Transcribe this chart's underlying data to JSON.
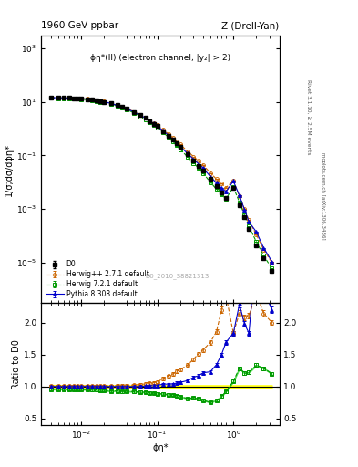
{
  "title_left": "1960 GeV ppbar",
  "title_right": "Z (Drell-Yan)",
  "annotation": "ϕη*(ll) (electron channel, |y₂| > 2)",
  "watermark": "D0_2010_S8821313",
  "ylabel_main": "1/σ;dσ/dϕη*",
  "ylabel_ratio": "Ratio to D0",
  "xlabel": "ϕη*",
  "right_label": "Rivet 3.1.10, ≥ 2.5M events",
  "right_label2": "mcplots.cern.ch [arXiv:1306.3436]",
  "d0_x": [
    0.004,
    0.005,
    0.006,
    0.007,
    0.008,
    0.009,
    0.01,
    0.012,
    0.014,
    0.016,
    0.018,
    0.02,
    0.025,
    0.03,
    0.035,
    0.04,
    0.05,
    0.06,
    0.07,
    0.08,
    0.09,
    0.1,
    0.12,
    0.14,
    0.16,
    0.18,
    0.2,
    0.25,
    0.3,
    0.35,
    0.4,
    0.5,
    0.6,
    0.7,
    0.8,
    1.0,
    1.2,
    1.4,
    1.6,
    2.0,
    2.5,
    3.2
  ],
  "d0_y": [
    14.5,
    14.2,
    14.0,
    13.9,
    13.7,
    13.5,
    13.2,
    12.7,
    12.1,
    11.4,
    10.7,
    10.1,
    8.7,
    7.4,
    6.4,
    5.5,
    4.15,
    3.15,
    2.48,
    1.93,
    1.53,
    1.23,
    0.8,
    0.55,
    0.385,
    0.275,
    0.202,
    0.108,
    0.063,
    0.041,
    0.028,
    0.013,
    0.007,
    0.004,
    0.0026,
    0.006,
    0.0014,
    0.00048,
    0.00018,
    4.5e-05,
    1.4e-05,
    5e-06
  ],
  "d0_yerr": [
    0.35,
    0.32,
    0.3,
    0.29,
    0.28,
    0.27,
    0.26,
    0.25,
    0.24,
    0.23,
    0.21,
    0.2,
    0.17,
    0.15,
    0.13,
    0.11,
    0.083,
    0.063,
    0.05,
    0.039,
    0.031,
    0.025,
    0.016,
    0.011,
    0.0077,
    0.0055,
    0.004,
    0.0022,
    0.0013,
    0.00082,
    0.00056,
    0.00026,
    0.00014,
    8e-05,
    5.2e-05,
    0.00012,
    2.8e-05,
    9.6e-06,
    3.6e-06,
    9e-07,
    2.8e-07,
    1e-07
  ],
  "herwig_pp_x": [
    0.004,
    0.005,
    0.006,
    0.007,
    0.008,
    0.009,
    0.01,
    0.012,
    0.014,
    0.016,
    0.018,
    0.02,
    0.025,
    0.03,
    0.035,
    0.04,
    0.05,
    0.06,
    0.07,
    0.08,
    0.09,
    0.1,
    0.12,
    0.14,
    0.16,
    0.18,
    0.2,
    0.25,
    0.3,
    0.35,
    0.4,
    0.5,
    0.6,
    0.7,
    0.8,
    1.0,
    1.2,
    1.4,
    1.6,
    2.0,
    2.5,
    3.2
  ],
  "herwig_pp_y": [
    14.6,
    14.3,
    14.1,
    14.0,
    13.8,
    13.6,
    13.3,
    12.8,
    12.2,
    11.5,
    10.8,
    10.2,
    8.8,
    7.5,
    6.5,
    5.6,
    4.25,
    3.25,
    2.58,
    2.03,
    1.62,
    1.32,
    0.9,
    0.64,
    0.46,
    0.34,
    0.255,
    0.144,
    0.09,
    0.062,
    0.044,
    0.022,
    0.013,
    0.0088,
    0.0063,
    0.011,
    0.003,
    0.001,
    0.00038,
    0.00011,
    3e-05,
    1e-05
  ],
  "herwig_pp_yerr": [
    0.05,
    0.05,
    0.05,
    0.05,
    0.05,
    0.05,
    0.05,
    0.05,
    0.05,
    0.045,
    0.04,
    0.04,
    0.035,
    0.03,
    0.026,
    0.022,
    0.017,
    0.013,
    0.01,
    0.008,
    0.0065,
    0.0053,
    0.0036,
    0.0026,
    0.0018,
    0.0014,
    0.001,
    0.00058,
    0.00036,
    0.00025,
    0.00018,
    9e-05,
    5.2e-05,
    3.5e-05,
    2.5e-05,
    4.4e-05,
    1.2e-05,
    4e-06,
    1.5e-06,
    4.4e-07,
    1.2e-07,
    4e-08
  ],
  "herwig_72_x": [
    0.004,
    0.005,
    0.006,
    0.007,
    0.008,
    0.009,
    0.01,
    0.012,
    0.014,
    0.016,
    0.018,
    0.02,
    0.025,
    0.03,
    0.035,
    0.04,
    0.05,
    0.06,
    0.07,
    0.08,
    0.09,
    0.1,
    0.12,
    0.14,
    0.16,
    0.18,
    0.2,
    0.25,
    0.3,
    0.35,
    0.4,
    0.5,
    0.6,
    0.7,
    0.8,
    1.0,
    1.2,
    1.4,
    1.6,
    2.0,
    2.5,
    3.2
  ],
  "herwig_72_y": [
    13.9,
    13.6,
    13.4,
    13.3,
    13.1,
    12.9,
    12.6,
    12.1,
    11.5,
    10.8,
    10.1,
    9.5,
    8.1,
    6.9,
    5.9,
    5.1,
    3.82,
    2.88,
    2.26,
    1.74,
    1.37,
    1.09,
    0.71,
    0.48,
    0.335,
    0.235,
    0.17,
    0.088,
    0.052,
    0.033,
    0.022,
    0.0098,
    0.0055,
    0.0034,
    0.0024,
    0.0065,
    0.0018,
    0.00058,
    0.00022,
    6e-05,
    1.8e-05,
    6e-06
  ],
  "herwig_72_yerr": [
    0.05,
    0.05,
    0.05,
    0.05,
    0.05,
    0.05,
    0.05,
    0.05,
    0.046,
    0.043,
    0.04,
    0.038,
    0.032,
    0.028,
    0.024,
    0.02,
    0.015,
    0.012,
    0.009,
    0.007,
    0.0055,
    0.0044,
    0.0028,
    0.0019,
    0.00134,
    0.00094,
    0.00068,
    0.00035,
    0.00021,
    0.000132,
    9e-05,
    4e-05,
    2.2e-05,
    1.36e-05,
    9.6e-06,
    2.6e-05,
    7.2e-06,
    2.32e-06,
    8.8e-07,
    2.4e-07,
    7.2e-08,
    2.4e-08
  ],
  "pythia_x": [
    0.004,
    0.005,
    0.006,
    0.007,
    0.008,
    0.009,
    0.01,
    0.012,
    0.014,
    0.016,
    0.018,
    0.02,
    0.025,
    0.03,
    0.035,
    0.04,
    0.05,
    0.06,
    0.07,
    0.08,
    0.09,
    0.1,
    0.12,
    0.14,
    0.16,
    0.18,
    0.2,
    0.25,
    0.3,
    0.35,
    0.4,
    0.5,
    0.6,
    0.7,
    0.8,
    1.0,
    1.2,
    1.4,
    1.6,
    2.0,
    2.5,
    3.2
  ],
  "pythia_y": [
    14.5,
    14.2,
    14.0,
    13.9,
    13.7,
    13.5,
    13.2,
    12.7,
    12.1,
    11.4,
    10.7,
    10.1,
    8.7,
    7.4,
    6.4,
    5.5,
    4.15,
    3.15,
    2.5,
    1.95,
    1.55,
    1.25,
    0.83,
    0.57,
    0.4,
    0.29,
    0.215,
    0.118,
    0.072,
    0.048,
    0.034,
    0.016,
    0.0094,
    0.006,
    0.0044,
    0.011,
    0.0032,
    0.00095,
    0.00033,
    0.00014,
    3.5e-05,
    1.1e-05
  ],
  "pythia_yerr": [
    0.05,
    0.05,
    0.05,
    0.05,
    0.05,
    0.05,
    0.05,
    0.05,
    0.048,
    0.046,
    0.043,
    0.04,
    0.035,
    0.03,
    0.026,
    0.022,
    0.017,
    0.013,
    0.01,
    0.0078,
    0.0062,
    0.005,
    0.0033,
    0.0023,
    0.0016,
    0.00116,
    0.00086,
    0.00047,
    0.00029,
    0.000192,
    0.000136,
    6.4e-05,
    3.76e-05,
    2.4e-05,
    1.76e-05,
    4.4e-05,
    1.28e-05,
    3.8e-06,
    1.32e-06,
    5.6e-07,
    1.4e-07,
    4.4e-08
  ],
  "color_d0": "#000000",
  "color_herwig_pp": "#cc6600",
  "color_herwig_72": "#009900",
  "color_pythia": "#0000cc",
  "color_yellow_band": "#ffff00",
  "color_green_band": "#00cc00",
  "ylim_main": [
    3e-07,
    3000.0
  ],
  "ylim_ratio": [
    0.4,
    2.3
  ],
  "xlim": [
    0.003,
    4.0
  ],
  "ratio_yticks": [
    0.5,
    1.0,
    1.5,
    2.0
  ]
}
